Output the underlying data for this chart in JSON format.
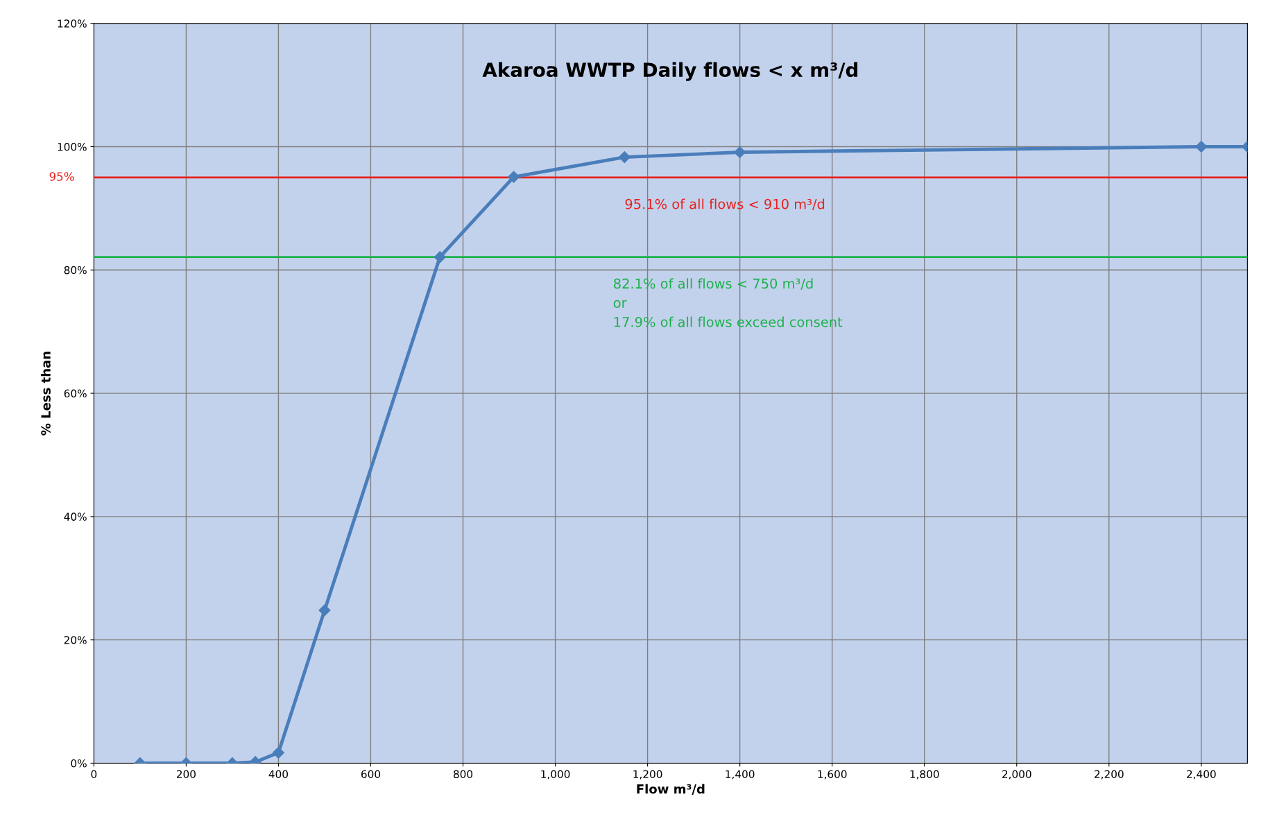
{
  "chart_data": {
    "type": "line",
    "title": "Akaroa WWTP Daily flows < x m³/d",
    "xlabel": "Flow m³/d",
    "ylabel": "% Less than",
    "x": [
      100,
      200,
      300,
      350,
      400,
      500,
      750,
      910,
      1150,
      1400,
      2400,
      2500
    ],
    "series": [
      {
        "color": "#4a7ebb",
        "values": [
          0,
          0,
          0,
          0.2,
          1.7,
          24.8,
          82.1,
          95.1,
          98.3,
          99.1,
          100,
          100
        ]
      }
    ],
    "marker": "diamond",
    "line_style": "solid",
    "xlim": [
      0,
      2500
    ],
    "xticks": [
      0,
      200,
      400,
      600,
      800,
      {
        "value": 1000,
        "label": "1,000"
      },
      {
        "value": 1200,
        "label": "1,200"
      },
      {
        "value": 1400,
        "label": "1,400"
      },
      {
        "value": 1600,
        "label": "1,600"
      },
      {
        "value": 1800,
        "label": "1,800"
      },
      {
        "value": 2000,
        "label": "2,000"
      },
      {
        "value": 2200,
        "label": "2,200"
      },
      {
        "value": 2400,
        "label": "2,400"
      }
    ],
    "ylim": [
      0,
      120
    ],
    "yticks": [
      {
        "value": 0,
        "label": "0%"
      },
      {
        "value": 20,
        "label": "20%"
      },
      {
        "value": 40,
        "label": "40%"
      },
      {
        "value": 60,
        "label": "60%"
      },
      {
        "value": 80,
        "label": "80%"
      },
      {
        "value": 100,
        "label": "100%"
      },
      {
        "value": 120,
        "label": "120%"
      }
    ],
    "grid": true,
    "legend": false,
    "ref_lines": [
      {
        "axis": "y",
        "value": 95,
        "label": "95%",
        "color": "#e8211c"
      },
      {
        "axis": "y",
        "value": 82.1,
        "color": "#1bb14c"
      }
    ],
    "annotations": [
      "95.1% of all flows < 910 m³/d",
      "82.1% of all flows < 750 m³/d\nor\n17.9% of all flows exceed consent"
    ]
  }
}
